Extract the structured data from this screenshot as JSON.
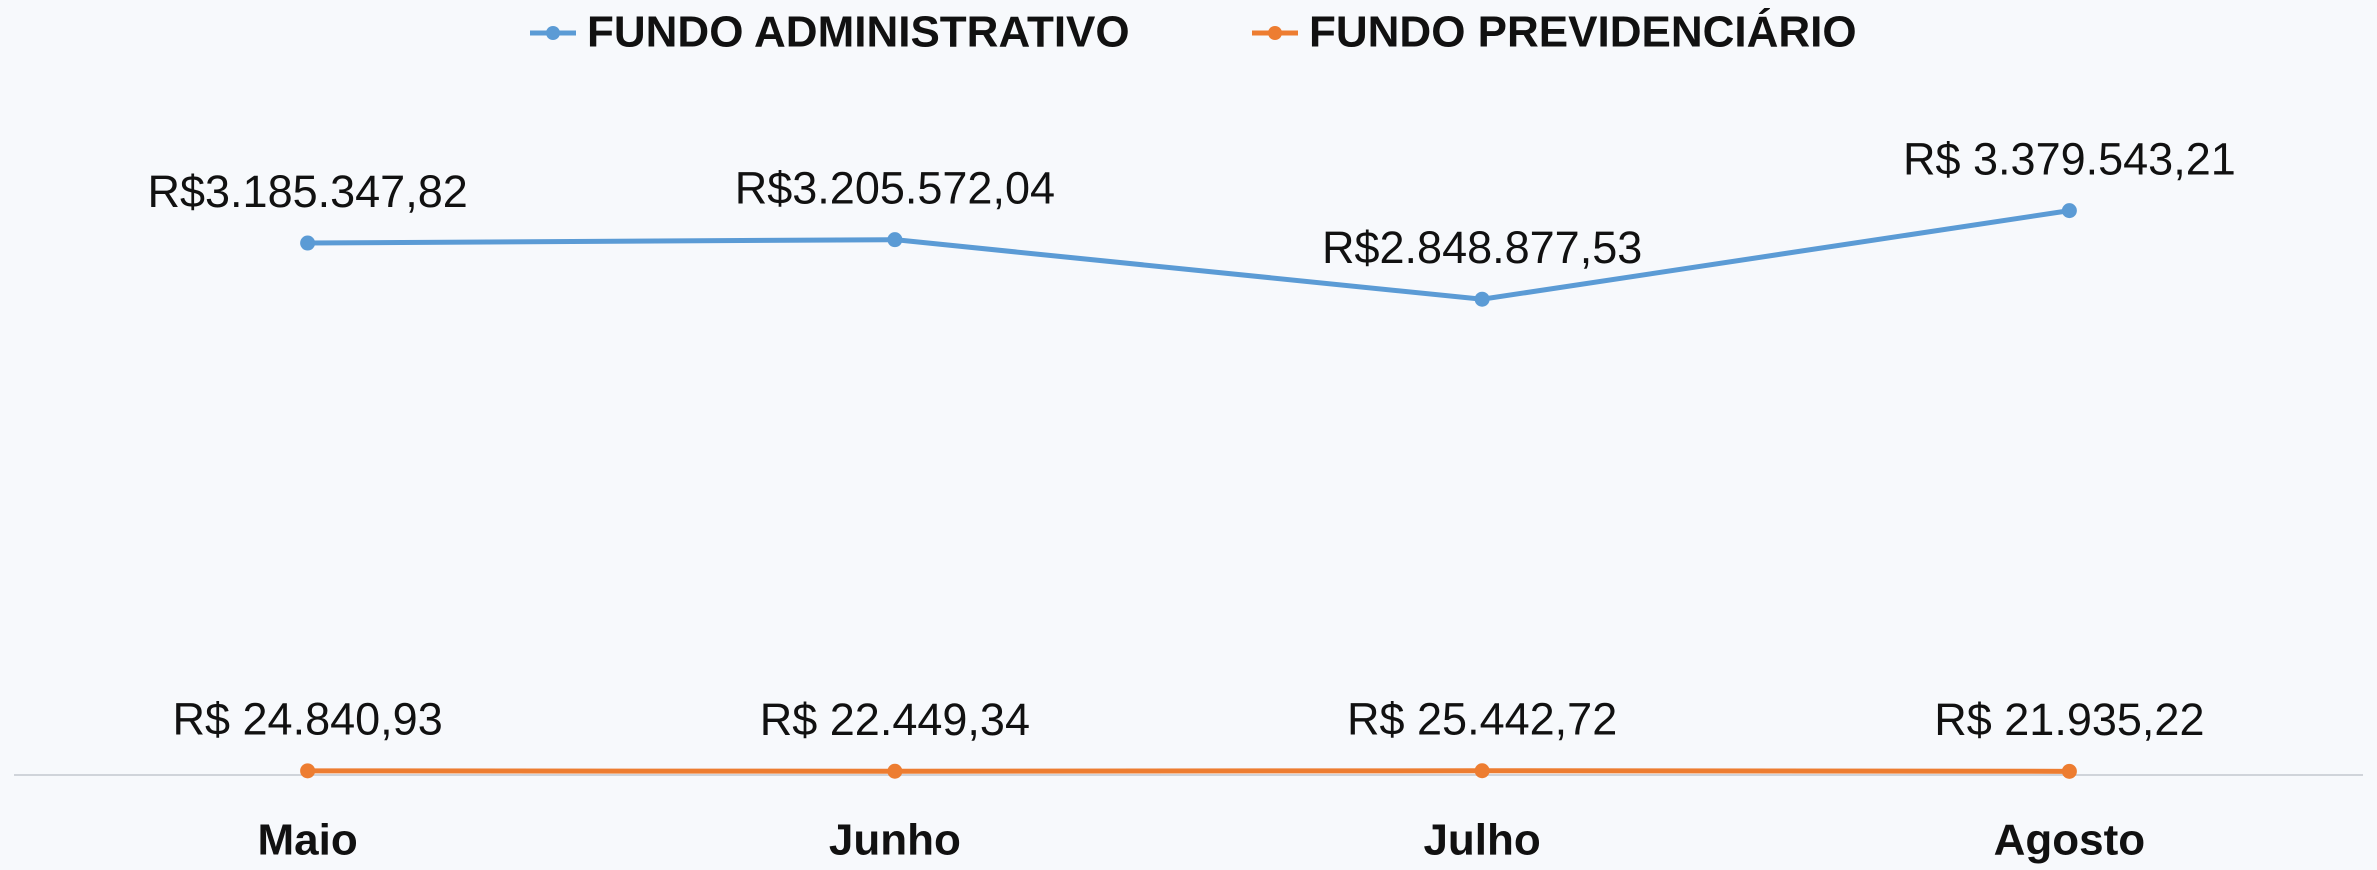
{
  "chart_data": {
    "type": "line",
    "categories": [
      "Maio",
      "Junho",
      "Julho",
      "Agosto"
    ],
    "series": [
      {
        "name": "FUNDO ADMINISTRATIVO",
        "color": "#5b9bd5",
        "values": [
          3185347.82,
          3205572.04,
          2848877.53,
          3379543.21
        ],
        "value_labels": [
          "R$3.185.347,82",
          "R$3.205.572,04",
          "R$2.848.877,53",
          "R$ 3.379.543,21"
        ]
      },
      {
        "name": "FUNDO PREVIDENCIÁRIO",
        "color": "#ed7d31",
        "values": [
          24840.93,
          22449.34,
          25442.72,
          21935.22
        ],
        "value_labels": [
          "R$ 24.840,93",
          "R$ 22.449,34",
          "R$ 25.442,72",
          "R$ 21.935,22"
        ]
      }
    ],
    "ylim": [
      0,
      4000000
    ],
    "legend": "top"
  }
}
